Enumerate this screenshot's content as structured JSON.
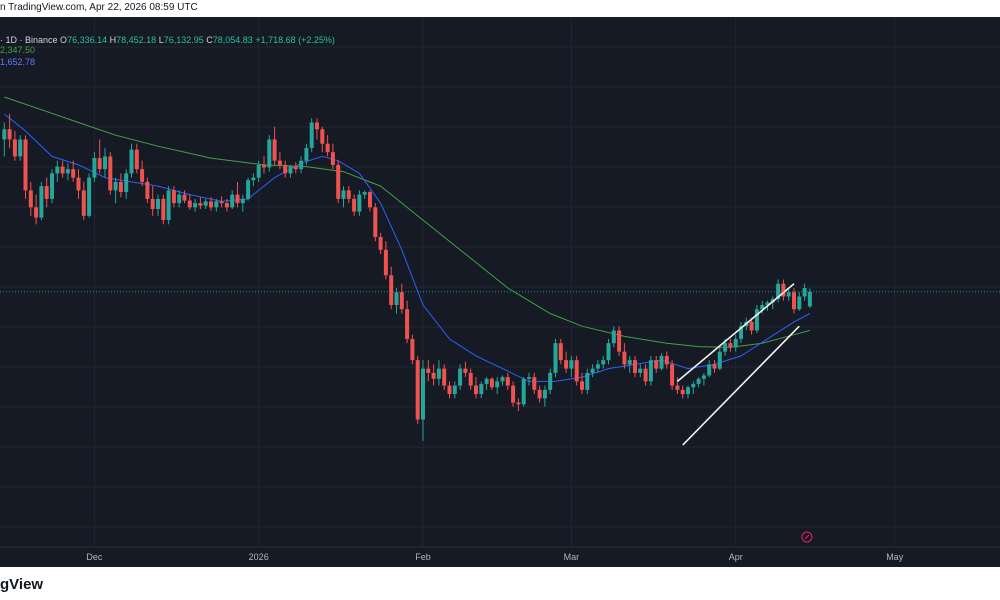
{
  "header": {
    "source_text": "n TradingView.com, Apr 22, 2026 08:59 UTC"
  },
  "legend": {
    "symbol_text": "· 1D · Binance",
    "open_label": "O",
    "open_value": "76,336.14",
    "high_label": "H",
    "high_value": "78,452.18",
    "low_label": "L",
    "low_value": "76,132.95",
    "close_label": "C",
    "close_value": "78,054.83",
    "change_text": "+1,718.68 (+2.25%)",
    "ma_long_value": "2,347.50",
    "ma_short_value": "1,652.78"
  },
  "footer": {
    "logo_text": "gView"
  },
  "colors": {
    "background": "#161a25",
    "grid": "#222631",
    "up_candle": "#26a69a",
    "down_candle": "#ef5350",
    "ma_short": "#2962ff",
    "ma_long": "#43a047",
    "channel": "#f0f0f0",
    "price_line": "#26a69a",
    "axis_text": "#b2b5be"
  },
  "chart_data": {
    "type": "candlestick",
    "interval": "1D",
    "exchange": "Binance",
    "x_axis_labels": [
      {
        "label": "Dec",
        "day": 18
      },
      {
        "label": "2026",
        "day": 49
      },
      {
        "label": "Feb",
        "day": 80
      },
      {
        "label": "Mar",
        "day": 108
      },
      {
        "label": "Apr",
        "day": 139
      },
      {
        "label": "May",
        "day": 169
      }
    ],
    "grid": true,
    "price_range": [
      58000,
      101000
    ],
    "candles": [
      [
        1,
        96000,
        98000,
        94000,
        97200
      ],
      [
        2,
        97200,
        99000,
        95000,
        96000
      ],
      [
        3,
        96000,
        97000,
        93500,
        94000
      ],
      [
        4,
        94000,
        96500,
        93500,
        96000
      ],
      [
        5,
        96000,
        96500,
        89000,
        90000
      ],
      [
        6,
        90000,
        91000,
        87000,
        88000
      ],
      [
        7,
        88000,
        89500,
        86000,
        86800
      ],
      [
        8,
        86800,
        91000,
        86500,
        90500
      ],
      [
        9,
        90500,
        91500,
        88000,
        89000
      ],
      [
        10,
        89000,
        92500,
        88500,
        92000
      ],
      [
        11,
        92000,
        93500,
        91000,
        92800
      ],
      [
        12,
        92800,
        93500,
        91500,
        92000
      ],
      [
        13,
        92000,
        93200,
        91200,
        92500
      ],
      [
        14,
        92500,
        93500,
        91000,
        91500
      ],
      [
        15,
        91500,
        92500,
        89000,
        90000
      ],
      [
        16,
        90000,
        91000,
        86500,
        87000
      ],
      [
        17,
        87000,
        92000,
        86800,
        91500
      ],
      [
        18,
        91500,
        94500,
        91000,
        93800
      ],
      [
        19,
        93800,
        96000,
        92000,
        92500
      ],
      [
        20,
        92500,
        95000,
        91500,
        94000
      ],
      [
        21,
        94000,
        94500,
        89500,
        90000
      ],
      [
        22,
        90000,
        91500,
        88500,
        91000
      ],
      [
        23,
        91000,
        92000,
        89200,
        89800
      ],
      [
        24,
        89800,
        92500,
        89000,
        92000
      ],
      [
        25,
        92000,
        95500,
        91500,
        94800
      ],
      [
        26,
        94800,
        95500,
        92000,
        92500
      ],
      [
        27,
        92500,
        93500,
        90500,
        91000
      ],
      [
        28,
        91000,
        91500,
        88500,
        89000
      ],
      [
        29,
        89000,
        90500,
        87000,
        87800
      ],
      [
        30,
        87800,
        89500,
        87000,
        89000
      ],
      [
        31,
        89000,
        89500,
        86000,
        86500
      ],
      [
        32,
        86500,
        90500,
        86000,
        90000
      ],
      [
        33,
        90000,
        90500,
        88000,
        88500
      ],
      [
        34,
        88500,
        90000,
        88000,
        89500
      ],
      [
        35,
        89500,
        90000,
        88500,
        88800
      ],
      [
        36,
        88800,
        89500,
        87700,
        88000
      ],
      [
        37,
        88000,
        89000,
        87500,
        88500
      ],
      [
        38,
        88500,
        89200,
        87800,
        88200
      ],
      [
        39,
        88200,
        89000,
        87800,
        88700
      ],
      [
        40,
        88700,
        89200,
        87600,
        88000
      ],
      [
        41,
        88000,
        89000,
        87500,
        88700
      ],
      [
        42,
        88700,
        89300,
        88000,
        88500
      ],
      [
        43,
        88500,
        89000,
        87500,
        88000
      ],
      [
        44,
        88000,
        90000,
        87800,
        89500
      ],
      [
        45,
        89500,
        91000,
        88000,
        88500
      ],
      [
        46,
        88500,
        89500,
        87500,
        89000
      ],
      [
        47,
        89000,
        91500,
        88800,
        91200
      ],
      [
        48,
        91200,
        92000,
        90500,
        91500
      ],
      [
        49,
        91500,
        93500,
        91000,
        93000
      ],
      [
        50,
        93000,
        94000,
        92000,
        92700
      ],
      [
        51,
        92700,
        96500,
        92200,
        96000
      ],
      [
        52,
        96000,
        97500,
        93000,
        93500
      ],
      [
        53,
        93500,
        94500,
        92500,
        93000
      ],
      [
        54,
        93000,
        93500,
        91500,
        92000
      ],
      [
        55,
        92000,
        93000,
        91500,
        92800
      ],
      [
        56,
        92800,
        93300,
        92000,
        92500
      ],
      [
        57,
        92500,
        94000,
        92000,
        93500
      ],
      [
        58,
        93500,
        95500,
        93000,
        95000
      ],
      [
        59,
        95000,
        98500,
        94500,
        98000
      ],
      [
        60,
        98000,
        98500,
        96000,
        97200
      ],
      [
        61,
        97200,
        97500,
        94500,
        95500
      ],
      [
        62,
        95500,
        96500,
        94000,
        94500
      ],
      [
        63,
        94500,
        95500,
        92500,
        93000
      ],
      [
        64,
        93000,
        93500,
        88500,
        89000
      ],
      [
        65,
        89000,
        90500,
        88000,
        90000
      ],
      [
        66,
        90000,
        90500,
        88500,
        89000
      ],
      [
        67,
        89000,
        89500,
        87000,
        87500
      ],
      [
        68,
        87500,
        90000,
        87000,
        89500
      ],
      [
        69,
        89500,
        90000,
        89000,
        89800
      ],
      [
        70,
        89800,
        90000,
        87500,
        88000
      ],
      [
        71,
        88000,
        88500,
        84000,
        84500
      ],
      [
        72,
        84500,
        85000,
        82500,
        83000
      ],
      [
        73,
        83000,
        84000,
        79500,
        80000
      ],
      [
        74,
        80000,
        81000,
        76000,
        76500
      ],
      [
        75,
        76500,
        78500,
        75500,
        78000
      ],
      [
        76,
        78000,
        79000,
        75500,
        76000
      ],
      [
        77,
        76000,
        77000,
        72000,
        72500
      ],
      [
        78,
        72500,
        73000,
        69500,
        70000
      ],
      [
        79,
        70000,
        70500,
        62500,
        63000
      ],
      [
        80,
        63000,
        70000,
        60500,
        69000
      ],
      [
        81,
        69000,
        70000,
        67500,
        68500
      ],
      [
        82,
        68500,
        69500,
        67000,
        67800
      ],
      [
        83,
        67800,
        70000,
        67000,
        69000
      ],
      [
        84,
        69000,
        69500,
        66500,
        67000
      ],
      [
        85,
        67000,
        67500,
        65500,
        66000
      ],
      [
        86,
        66000,
        67500,
        65500,
        67000
      ],
      [
        87,
        67000,
        69500,
        66500,
        69000
      ],
      [
        88,
        69000,
        69800,
        68000,
        68500
      ],
      [
        89,
        68500,
        69000,
        66500,
        67000
      ],
      [
        90,
        67000,
        68000,
        65500,
        66000
      ],
      [
        91,
        66000,
        67500,
        65500,
        67200
      ],
      [
        92,
        67200,
        68000,
        66500,
        67800
      ],
      [
        93,
        67800,
        68000,
        66500,
        66800
      ],
      [
        94,
        66800,
        68000,
        66000,
        67500
      ],
      [
        95,
        67500,
        68200,
        67000,
        68000
      ],
      [
        96,
        68000,
        68500,
        66500,
        67000
      ],
      [
        97,
        67000,
        67500,
        64500,
        65000
      ],
      [
        98,
        65000,
        65500,
        64000,
        64800
      ],
      [
        99,
        64800,
        68000,
        64500,
        67800
      ],
      [
        100,
        67800,
        68500,
        67000,
        68000
      ],
      [
        101,
        68000,
        68500,
        66000,
        66500
      ],
      [
        102,
        66500,
        67000,
        65000,
        65500
      ],
      [
        103,
        65500,
        67000,
        64500,
        66500
      ],
      [
        104,
        66500,
        69000,
        66000,
        68500
      ],
      [
        105,
        68500,
        72500,
        68000,
        72000
      ],
      [
        106,
        72000,
        72500,
        69500,
        70000
      ],
      [
        107,
        70000,
        71000,
        68500,
        69000
      ],
      [
        108,
        69000,
        70500,
        68000,
        70000
      ],
      [
        109,
        70000,
        70500,
        67000,
        67500
      ],
      [
        110,
        67500,
        68500,
        66000,
        66500
      ],
      [
        111,
        66500,
        69000,
        66000,
        68500
      ],
      [
        112,
        68500,
        69500,
        68000,
        69000
      ],
      [
        113,
        69000,
        70000,
        68500,
        69500
      ],
      [
        114,
        69500,
        70500,
        69000,
        70000
      ],
      [
        115,
        70000,
        72500,
        69500,
        72000
      ],
      [
        116,
        72000,
        74000,
        71500,
        73500
      ],
      [
        117,
        73500,
        74000,
        70500,
        71000
      ],
      [
        118,
        71000,
        72000,
        69000,
        69500
      ],
      [
        119,
        69500,
        70500,
        68500,
        70000
      ],
      [
        120,
        70000,
        70500,
        68000,
        68500
      ],
      [
        121,
        68500,
        69500,
        68000,
        69000
      ],
      [
        122,
        69000,
        69500,
        67000,
        67500
      ],
      [
        123,
        67500,
        70500,
        67000,
        70000
      ],
      [
        124,
        70000,
        70500,
        68500,
        69000
      ],
      [
        125,
        69000,
        70800,
        68800,
        70500
      ],
      [
        126,
        70500,
        71000,
        69000,
        69500
      ],
      [
        127,
        69500,
        70000,
        66500,
        67000
      ],
      [
        128,
        67000,
        68000,
        66000,
        66500
      ],
      [
        129,
        66500,
        67000,
        65500,
        66000
      ],
      [
        130,
        66000,
        67000,
        65500,
        66800
      ],
      [
        131,
        66800,
        67500,
        66000,
        67200
      ],
      [
        132,
        67200,
        68000,
        66800,
        67800
      ],
      [
        133,
        67800,
        68500,
        67000,
        68200
      ],
      [
        134,
        68200,
        70000,
        68000,
        69500
      ],
      [
        135,
        69500,
        70000,
        68500,
        69000
      ],
      [
        136,
        69000,
        71500,
        68800,
        71000
      ],
      [
        137,
        71000,
        72500,
        70500,
        72000
      ],
      [
        138,
        72000,
        72500,
        71000,
        71500
      ],
      [
        139,
        71500,
        73000,
        71000,
        72500
      ],
      [
        140,
        72500,
        74500,
        72000,
        74000
      ],
      [
        141,
        74000,
        75000,
        73500,
        74500
      ],
      [
        142,
        74500,
        75000,
        73000,
        73500
      ],
      [
        143,
        73500,
        76500,
        73200,
        76000
      ],
      [
        144,
        76000,
        77000,
        75500,
        76500
      ],
      [
        145,
        76500,
        77000,
        75800,
        76800
      ],
      [
        146,
        76800,
        77500,
        76000,
        77200
      ],
      [
        147,
        77200,
        79500,
        76800,
        79000
      ],
      [
        148,
        79000,
        79500,
        77000,
        77500
      ],
      [
        149,
        77500,
        78500,
        77000,
        78000
      ],
      [
        150,
        78000,
        78500,
        75500,
        76000
      ],
      [
        151,
        76000,
        78000,
        75800,
        77500
      ],
      [
        152,
        77500,
        79000,
        77000,
        78500
      ],
      [
        153,
        76336.14,
        78452.18,
        76132.95,
        78054.83
      ]
    ],
    "moving_averages": [
      {
        "color_key": "ma_long",
        "values": [
          [
            1,
            101000
          ],
          [
            8,
            99500
          ],
          [
            15,
            98000
          ],
          [
            22,
            96500
          ],
          [
            30,
            95200
          ],
          [
            40,
            93800
          ],
          [
            50,
            93000
          ],
          [
            58,
            92800
          ],
          [
            65,
            92200
          ],
          [
            72,
            90500
          ],
          [
            80,
            86500
          ],
          [
            88,
            82500
          ],
          [
            96,
            78500
          ],
          [
            104,
            75500
          ],
          [
            110,
            74000
          ],
          [
            118,
            72800
          ],
          [
            126,
            72000
          ],
          [
            132,
            71600
          ],
          [
            138,
            71500
          ],
          [
            144,
            72000
          ],
          [
            150,
            73000
          ],
          [
            153,
            73500
          ]
        ]
      },
      {
        "color_key": "ma_short",
        "values": [
          [
            1,
            99000
          ],
          [
            5,
            97000
          ],
          [
            10,
            94000
          ],
          [
            15,
            93000
          ],
          [
            20,
            91500
          ],
          [
            25,
            91000
          ],
          [
            30,
            90500
          ],
          [
            36,
            89500
          ],
          [
            42,
            88700
          ],
          [
            47,
            89000
          ],
          [
            52,
            91500
          ],
          [
            57,
            93200
          ],
          [
            61,
            94000
          ],
          [
            64,
            93500
          ],
          [
            68,
            92000
          ],
          [
            72,
            88500
          ],
          [
            76,
            83000
          ],
          [
            80,
            76500
          ],
          [
            85,
            72500
          ],
          [
            90,
            70500
          ],
          [
            95,
            69000
          ],
          [
            100,
            67500
          ],
          [
            105,
            67500
          ],
          [
            110,
            68000
          ],
          [
            115,
            69000
          ],
          [
            120,
            69500
          ],
          [
            125,
            70000
          ],
          [
            130,
            69000
          ],
          [
            135,
            69500
          ],
          [
            140,
            70500
          ],
          [
            145,
            72500
          ],
          [
            150,
            74500
          ],
          [
            153,
            75500
          ]
        ]
      }
    ],
    "annotations": [
      {
        "type": "channel_line",
        "from": [
          128,
          67500
        ],
        "to": [
          150,
          79000
        ]
      },
      {
        "type": "channel_line",
        "from": [
          129,
          60000
        ],
        "to": [
          151,
          74000
        ]
      }
    ],
    "current_price": 78054.83
  }
}
